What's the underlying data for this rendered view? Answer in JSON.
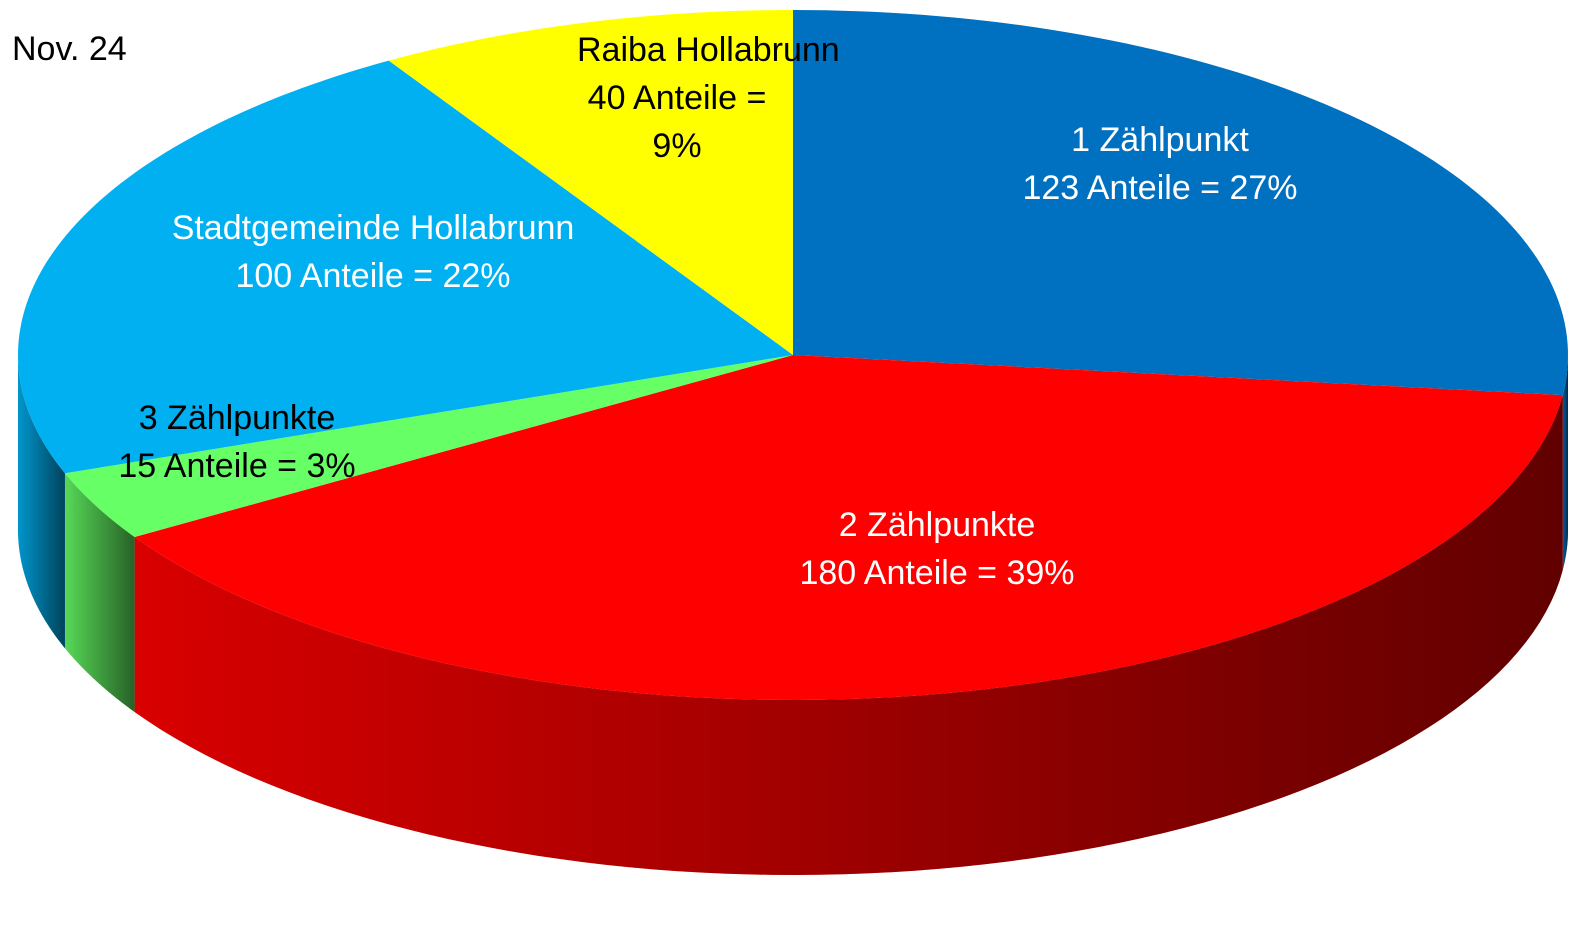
{
  "chart_data": {
    "type": "pie",
    "title": "Nov. 24",
    "categories": [
      "1 Zählpunkt",
      "2 Zählpunkte",
      "3 Zählpunkte",
      "Stadtgemeinde Hollabrunn",
      "Raiba Hollabrunn"
    ],
    "values": [
      123,
      180,
      15,
      100,
      40
    ],
    "value_labels": [
      "123 Anteile = 27%",
      "180 Anteile = 39%",
      "15 Anteile = 3%",
      "100 Anteile = 22%",
      "40 Anteile = 9%"
    ],
    "colors": [
      "#0070c0",
      "#ff0000",
      "#66ff66",
      "#00b0f0",
      "#ffff00"
    ],
    "label_colors": [
      "#ffffff",
      "#ffffff",
      "#000000",
      "#ffffff",
      "#000000"
    ]
  }
}
